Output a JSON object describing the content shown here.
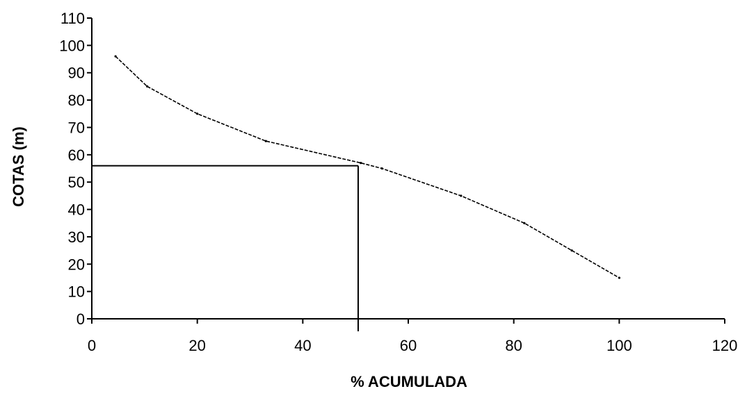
{
  "chart_data": {
    "type": "line",
    "title": "",
    "xlabel": "% ACUMULADA",
    "ylabel": "COTAS (m)",
    "xlim": [
      0,
      120
    ],
    "ylim": [
      0,
      110
    ],
    "x_ticks": [
      0,
      20,
      40,
      60,
      80,
      100,
      120
    ],
    "y_ticks": [
      0,
      10,
      20,
      30,
      40,
      50,
      60,
      70,
      80,
      90,
      100,
      110
    ],
    "grid": false,
    "legend": "none",
    "series": [
      {
        "x": [
          4.5,
          10.5,
          20,
          33,
          51,
          55,
          70,
          82,
          91,
          100
        ],
        "y": [
          96,
          85,
          75,
          65,
          57,
          55,
          45,
          35,
          25,
          15
        ],
        "color": "#000000",
        "style": "dashed-thin"
      }
    ],
    "reference_lines": [
      {
        "x": 50.5,
        "y": 56
      }
    ]
  }
}
